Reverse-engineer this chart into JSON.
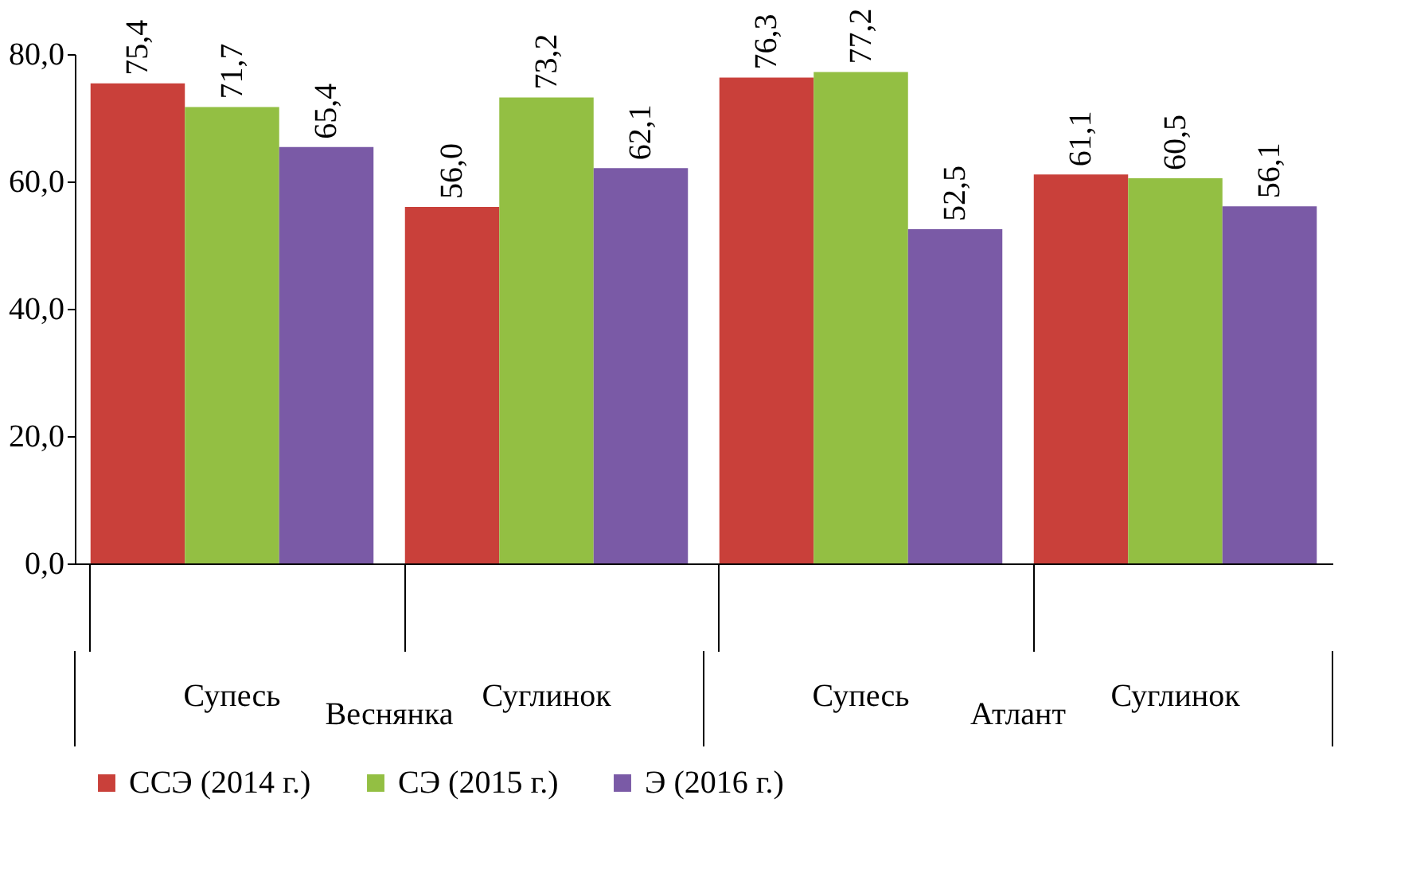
{
  "chart_data": {
    "type": "bar",
    "categories": [
      "Супесь",
      "Суглинок",
      "Супесь",
      "Суглинок"
    ],
    "series": [
      {
        "name": "ССЭ (2014 г.)",
        "color": "#c9403a",
        "values": [
          75.4,
          56.0,
          76.3,
          61.1
        ],
        "value_labels": [
          "75,4",
          "56,0",
          "76,3",
          "61,1"
        ]
      },
      {
        "name": "СЭ (2015 г.)",
        "color": "#93bf43",
        "values": [
          71.7,
          73.2,
          77.2,
          60.5
        ],
        "value_labels": [
          "71,7",
          "73,2",
          "77,2",
          "60,5"
        ]
      },
      {
        "name": "Э (2016 г.)",
        "color": "#7a5aa6",
        "values": [
          65.4,
          62.1,
          52.5,
          56.1
        ],
        "value_labels": [
          "65,4",
          "62,1",
          "52,5",
          "56,1"
        ]
      }
    ],
    "ylim": [
      0,
      80
    ],
    "yticks": [
      {
        "value": 0,
        "label": "0,0"
      },
      {
        "value": 20,
        "label": "20,0"
      },
      {
        "value": 40,
        "label": "40,0"
      },
      {
        "value": 60,
        "label": "60,0"
      },
      {
        "value": 80,
        "label": "80,0"
      }
    ],
    "annotations": [
      "Веснянка",
      "Атлант"
    ],
    "grid": false,
    "legend": "bottom"
  }
}
